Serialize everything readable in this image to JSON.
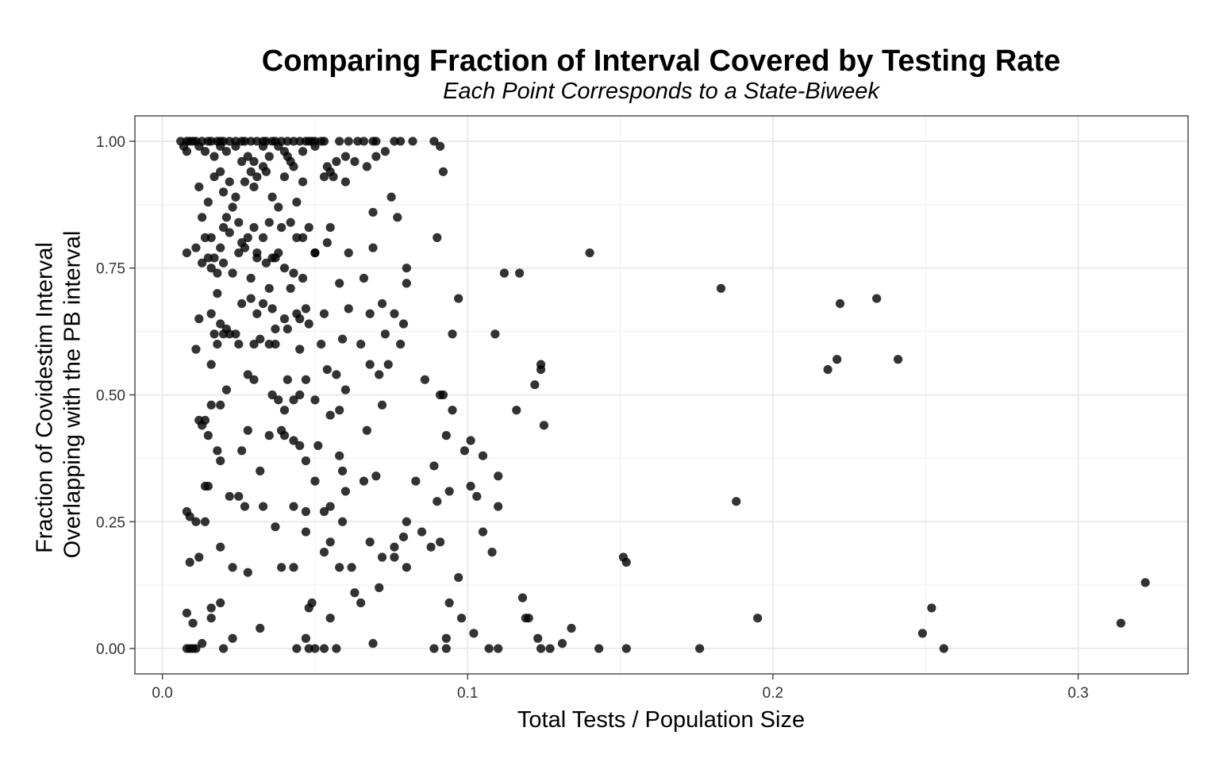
{
  "chart_data": {
    "type": "scatter",
    "title": "Comparing Fraction of Interval Covered by Testing Rate",
    "subtitle": "Each Point Corresponds to a State-Biweek",
    "xlabel": "Total Tests / Population Size",
    "ylabel": [
      "Fraction of Covidestim Interval",
      "Overlapping with the PB interval"
    ],
    "xlim": [
      -0.009,
      0.336
    ],
    "ylim": [
      -0.05,
      1.05
    ],
    "x_ticks": [
      0.0,
      0.1,
      0.2,
      0.3
    ],
    "x_tick_labels": [
      "0.0",
      "0.1",
      "0.2",
      "0.3"
    ],
    "y_ticks": [
      0.0,
      0.25,
      0.5,
      0.75,
      1.0
    ],
    "y_tick_labels": [
      "0.00",
      "0.25",
      "0.50",
      "0.75",
      "1.00"
    ],
    "grid": true,
    "legend": "none",
    "point_color": "#000000",
    "points": [
      [
        0.006,
        1.0
      ],
      [
        0.008,
        1.0
      ],
      [
        0.009,
        1.0
      ],
      [
        0.01,
        1.0
      ],
      [
        0.011,
        1.0
      ],
      [
        0.013,
        1.0
      ],
      [
        0.015,
        1.0
      ],
      [
        0.016,
        1.0
      ],
      [
        0.018,
        1.0
      ],
      [
        0.019,
        1.0
      ],
      [
        0.02,
        1.0
      ],
      [
        0.022,
        1.0
      ],
      [
        0.024,
        1.0
      ],
      [
        0.026,
        1.0
      ],
      [
        0.027,
        1.0
      ],
      [
        0.029,
        1.0
      ],
      [
        0.031,
        1.0
      ],
      [
        0.033,
        1.0
      ],
      [
        0.034,
        1.0
      ],
      [
        0.036,
        1.0
      ],
      [
        0.037,
        1.0
      ],
      [
        0.039,
        1.0
      ],
      [
        0.041,
        1.0
      ],
      [
        0.043,
        1.0
      ],
      [
        0.045,
        1.0
      ],
      [
        0.047,
        1.0
      ],
      [
        0.048,
        1.0
      ],
      [
        0.049,
        1.0
      ],
      [
        0.05,
        1.0
      ],
      [
        0.052,
        1.0
      ],
      [
        0.053,
        1.0
      ],
      [
        0.058,
        1.0
      ],
      [
        0.061,
        1.0
      ],
      [
        0.064,
        1.0
      ],
      [
        0.066,
        1.0
      ],
      [
        0.069,
        1.0
      ],
      [
        0.07,
        1.0
      ],
      [
        0.076,
        1.0
      ],
      [
        0.078,
        1.0
      ],
      [
        0.082,
        1.0
      ],
      [
        0.089,
        1.0
      ],
      [
        0.091,
        0.99
      ],
      [
        0.007,
        0.99
      ],
      [
        0.008,
        0.98
      ],
      [
        0.012,
        0.99
      ],
      [
        0.014,
        0.98
      ],
      [
        0.017,
        0.97
      ],
      [
        0.019,
        0.99
      ],
      [
        0.021,
        0.98
      ],
      [
        0.024,
        0.99
      ],
      [
        0.028,
        0.97
      ],
      [
        0.03,
        0.96
      ],
      [
        0.033,
        0.99
      ],
      [
        0.035,
        0.97
      ],
      [
        0.038,
        0.99
      ],
      [
        0.04,
        0.98
      ],
      [
        0.042,
        0.96
      ],
      [
        0.046,
        0.98
      ],
      [
        0.05,
        0.99
      ],
      [
        0.054,
        0.95
      ],
      [
        0.057,
        0.96
      ],
      [
        0.06,
        0.97
      ],
      [
        0.063,
        0.96
      ],
      [
        0.067,
        0.95
      ],
      [
        0.07,
        0.97
      ],
      [
        0.073,
        0.98
      ],
      [
        0.092,
        0.94
      ],
      [
        0.012,
        0.91
      ],
      [
        0.015,
        0.88
      ],
      [
        0.017,
        0.93
      ],
      [
        0.019,
        0.94
      ],
      [
        0.02,
        0.9
      ],
      [
        0.022,
        0.92
      ],
      [
        0.024,
        0.89
      ],
      [
        0.026,
        0.96
      ],
      [
        0.027,
        0.92
      ],
      [
        0.029,
        0.94
      ],
      [
        0.03,
        0.91
      ],
      [
        0.031,
        0.93
      ],
      [
        0.033,
        0.95
      ],
      [
        0.034,
        0.94
      ],
      [
        0.036,
        0.89
      ],
      [
        0.038,
        0.87
      ],
      [
        0.04,
        0.93
      ],
      [
        0.041,
        0.97
      ],
      [
        0.043,
        0.95
      ],
      [
        0.044,
        0.88
      ],
      [
        0.046,
        0.92
      ],
      [
        0.053,
        0.93
      ],
      [
        0.055,
        0.94
      ],
      [
        0.056,
        0.93
      ],
      [
        0.06,
        0.92
      ],
      [
        0.075,
        0.89
      ],
      [
        0.069,
        0.86
      ],
      [
        0.077,
        0.85
      ],
      [
        0.013,
        0.85
      ],
      [
        0.014,
        0.81
      ],
      [
        0.016,
        0.81
      ],
      [
        0.017,
        0.77
      ],
      [
        0.019,
        0.79
      ],
      [
        0.02,
        0.83
      ],
      [
        0.021,
        0.85
      ],
      [
        0.022,
        0.82
      ],
      [
        0.023,
        0.87
      ],
      [
        0.025,
        0.84
      ],
      [
        0.026,
        0.8
      ],
      [
        0.027,
        0.79
      ],
      [
        0.028,
        0.81
      ],
      [
        0.03,
        0.83
      ],
      [
        0.031,
        0.78
      ],
      [
        0.033,
        0.81
      ],
      [
        0.035,
        0.84
      ],
      [
        0.036,
        0.77
      ],
      [
        0.038,
        0.78
      ],
      [
        0.039,
        0.83
      ],
      [
        0.042,
        0.84
      ],
      [
        0.044,
        0.81
      ],
      [
        0.046,
        0.81
      ],
      [
        0.048,
        0.83
      ],
      [
        0.05,
        0.78
      ],
      [
        0.054,
        0.8
      ],
      [
        0.055,
        0.83
      ],
      [
        0.061,
        0.78
      ],
      [
        0.069,
        0.79
      ],
      [
        0.09,
        0.81
      ],
      [
        0.008,
        0.78
      ],
      [
        0.011,
        0.79
      ],
      [
        0.013,
        0.76
      ],
      [
        0.015,
        0.77
      ],
      [
        0.016,
        0.75
      ],
      [
        0.018,
        0.74
      ],
      [
        0.02,
        0.76
      ],
      [
        0.023,
        0.74
      ],
      [
        0.025,
        0.78
      ],
      [
        0.029,
        0.73
      ],
      [
        0.031,
        0.77
      ],
      [
        0.034,
        0.76
      ],
      [
        0.037,
        0.77
      ],
      [
        0.04,
        0.75
      ],
      [
        0.043,
        0.74
      ],
      [
        0.046,
        0.73
      ],
      [
        0.05,
        0.78
      ],
      [
        0.08,
        0.75
      ],
      [
        0.08,
        0.72
      ],
      [
        0.112,
        0.74
      ],
      [
        0.117,
        0.74
      ],
      [
        0.14,
        0.78
      ],
      [
        0.012,
        0.65
      ],
      [
        0.016,
        0.66
      ],
      [
        0.017,
        0.62
      ],
      [
        0.018,
        0.7
      ],
      [
        0.019,
        0.64
      ],
      [
        0.021,
        0.63
      ],
      [
        0.022,
        0.62
      ],
      [
        0.024,
        0.62
      ],
      [
        0.026,
        0.68
      ],
      [
        0.029,
        0.69
      ],
      [
        0.031,
        0.66
      ],
      [
        0.033,
        0.68
      ],
      [
        0.035,
        0.71
      ],
      [
        0.036,
        0.67
      ],
      [
        0.037,
        0.63
      ],
      [
        0.04,
        0.65
      ],
      [
        0.042,
        0.71
      ],
      [
        0.044,
        0.66
      ],
      [
        0.045,
        0.65
      ],
      [
        0.047,
        0.67
      ],
      [
        0.048,
        0.64
      ],
      [
        0.053,
        0.66
      ],
      [
        0.058,
        0.72
      ],
      [
        0.061,
        0.67
      ],
      [
        0.066,
        0.73
      ],
      [
        0.068,
        0.66
      ],
      [
        0.072,
        0.68
      ],
      [
        0.073,
        0.62
      ],
      [
        0.076,
        0.66
      ],
      [
        0.079,
        0.64
      ],
      [
        0.095,
        0.62
      ],
      [
        0.097,
        0.69
      ],
      [
        0.109,
        0.62
      ],
      [
        0.183,
        0.71
      ],
      [
        0.222,
        0.68
      ],
      [
        0.234,
        0.69
      ],
      [
        0.011,
        0.59
      ],
      [
        0.016,
        0.56
      ],
      [
        0.018,
        0.6
      ],
      [
        0.02,
        0.62
      ],
      [
        0.025,
        0.6
      ],
      [
        0.03,
        0.6
      ],
      [
        0.032,
        0.61
      ],
      [
        0.035,
        0.6
      ],
      [
        0.037,
        0.6
      ],
      [
        0.041,
        0.63
      ],
      [
        0.045,
        0.59
      ],
      [
        0.052,
        0.6
      ],
      [
        0.059,
        0.61
      ],
      [
        0.065,
        0.6
      ],
      [
        0.068,
        0.56
      ],
      [
        0.074,
        0.56
      ],
      [
        0.078,
        0.6
      ],
      [
        0.122,
        0.52
      ],
      [
        0.124,
        0.55
      ],
      [
        0.124,
        0.56
      ],
      [
        0.218,
        0.55
      ],
      [
        0.221,
        0.57
      ],
      [
        0.241,
        0.57
      ],
      [
        0.012,
        0.45
      ],
      [
        0.013,
        0.44
      ],
      [
        0.014,
        0.45
      ],
      [
        0.015,
        0.42
      ],
      [
        0.016,
        0.48
      ],
      [
        0.019,
        0.48
      ],
      [
        0.021,
        0.51
      ],
      [
        0.028,
        0.54
      ],
      [
        0.03,
        0.53
      ],
      [
        0.036,
        0.5
      ],
      [
        0.038,
        0.49
      ],
      [
        0.04,
        0.47
      ],
      [
        0.041,
        0.53
      ],
      [
        0.043,
        0.49
      ],
      [
        0.045,
        0.5
      ],
      [
        0.047,
        0.53
      ],
      [
        0.05,
        0.49
      ],
      [
        0.054,
        0.55
      ],
      [
        0.055,
        0.46
      ],
      [
        0.057,
        0.54
      ],
      [
        0.058,
        0.47
      ],
      [
        0.06,
        0.51
      ],
      [
        0.067,
        0.43
      ],
      [
        0.071,
        0.54
      ],
      [
        0.072,
        0.48
      ],
      [
        0.086,
        0.53
      ],
      [
        0.091,
        0.5
      ],
      [
        0.092,
        0.5
      ],
      [
        0.095,
        0.47
      ],
      [
        0.116,
        0.47
      ],
      [
        0.125,
        0.44
      ],
      [
        0.018,
        0.39
      ],
      [
        0.019,
        0.37
      ],
      [
        0.026,
        0.39
      ],
      [
        0.028,
        0.43
      ],
      [
        0.035,
        0.42
      ],
      [
        0.039,
        0.43
      ],
      [
        0.04,
        0.42
      ],
      [
        0.043,
        0.41
      ],
      [
        0.045,
        0.4
      ],
      [
        0.047,
        0.37
      ],
      [
        0.051,
        0.4
      ],
      [
        0.058,
        0.38
      ],
      [
        0.059,
        0.35
      ],
      [
        0.093,
        0.42
      ],
      [
        0.099,
        0.39
      ],
      [
        0.101,
        0.41
      ],
      [
        0.105,
        0.38
      ],
      [
        0.014,
        0.32
      ],
      [
        0.015,
        0.32
      ],
      [
        0.022,
        0.3
      ],
      [
        0.025,
        0.3
      ],
      [
        0.027,
        0.28
      ],
      [
        0.032,
        0.35
      ],
      [
        0.033,
        0.28
      ],
      [
        0.043,
        0.28
      ],
      [
        0.047,
        0.27
      ],
      [
        0.05,
        0.33
      ],
      [
        0.053,
        0.27
      ],
      [
        0.055,
        0.28
      ],
      [
        0.06,
        0.31
      ],
      [
        0.066,
        0.33
      ],
      [
        0.07,
        0.34
      ],
      [
        0.083,
        0.33
      ],
      [
        0.089,
        0.36
      ],
      [
        0.09,
        0.29
      ],
      [
        0.094,
        0.31
      ],
      [
        0.101,
        0.32
      ],
      [
        0.103,
        0.3
      ],
      [
        0.11,
        0.34
      ],
      [
        0.11,
        0.28
      ],
      [
        0.188,
        0.29
      ],
      [
        0.008,
        0.27
      ],
      [
        0.009,
        0.26
      ],
      [
        0.011,
        0.25
      ],
      [
        0.014,
        0.25
      ],
      [
        0.019,
        0.2
      ],
      [
        0.023,
        0.16
      ],
      [
        0.028,
        0.15
      ],
      [
        0.037,
        0.24
      ],
      [
        0.039,
        0.16
      ],
      [
        0.043,
        0.16
      ],
      [
        0.047,
        0.23
      ],
      [
        0.053,
        0.19
      ],
      [
        0.055,
        0.21
      ],
      [
        0.058,
        0.16
      ],
      [
        0.059,
        0.25
      ],
      [
        0.062,
        0.16
      ],
      [
        0.068,
        0.21
      ],
      [
        0.072,
        0.18
      ],
      [
        0.076,
        0.18
      ],
      [
        0.076,
        0.2
      ],
      [
        0.079,
        0.22
      ],
      [
        0.08,
        0.25
      ],
      [
        0.08,
        0.16
      ],
      [
        0.085,
        0.23
      ],
      [
        0.088,
        0.2
      ],
      [
        0.091,
        0.21
      ],
      [
        0.097,
        0.14
      ],
      [
        0.105,
        0.23
      ],
      [
        0.108,
        0.19
      ],
      [
        0.151,
        0.18
      ],
      [
        0.152,
        0.17
      ],
      [
        0.009,
        0.17
      ],
      [
        0.012,
        0.18
      ],
      [
        0.008,
        0.07
      ],
      [
        0.01,
        0.05
      ],
      [
        0.013,
        0.01
      ],
      [
        0.016,
        0.08
      ],
      [
        0.016,
        0.06
      ],
      [
        0.019,
        0.09
      ],
      [
        0.023,
        0.02
      ],
      [
        0.032,
        0.04
      ],
      [
        0.048,
        0.08
      ],
      [
        0.049,
        0.09
      ],
      [
        0.047,
        0.02
      ],
      [
        0.055,
        0.06
      ],
      [
        0.063,
        0.11
      ],
      [
        0.065,
        0.09
      ],
      [
        0.069,
        0.01
      ],
      [
        0.071,
        0.12
      ],
      [
        0.093,
        0.02
      ],
      [
        0.094,
        0.09
      ],
      [
        0.098,
        0.06
      ],
      [
        0.102,
        0.03
      ],
      [
        0.118,
        0.1
      ],
      [
        0.119,
        0.06
      ],
      [
        0.12,
        0.06
      ],
      [
        0.123,
        0.02
      ],
      [
        0.131,
        0.01
      ],
      [
        0.134,
        0.04
      ],
      [
        0.195,
        0.06
      ],
      [
        0.249,
        0.03
      ],
      [
        0.252,
        0.08
      ],
      [
        0.314,
        0.05
      ],
      [
        0.322,
        0.13
      ],
      [
        0.008,
        0.0
      ],
      [
        0.009,
        0.0
      ],
      [
        0.01,
        0.0
      ],
      [
        0.011,
        0.0
      ],
      [
        0.02,
        0.0
      ],
      [
        0.044,
        0.0
      ],
      [
        0.048,
        0.0
      ],
      [
        0.05,
        0.0
      ],
      [
        0.053,
        0.0
      ],
      [
        0.057,
        0.0
      ],
      [
        0.089,
        0.0
      ],
      [
        0.093,
        0.0
      ],
      [
        0.107,
        0.0
      ],
      [
        0.11,
        0.0
      ],
      [
        0.124,
        0.0
      ],
      [
        0.127,
        0.0
      ],
      [
        0.143,
        0.0
      ],
      [
        0.152,
        0.0
      ],
      [
        0.176,
        0.0
      ],
      [
        0.256,
        0.0
      ]
    ]
  }
}
